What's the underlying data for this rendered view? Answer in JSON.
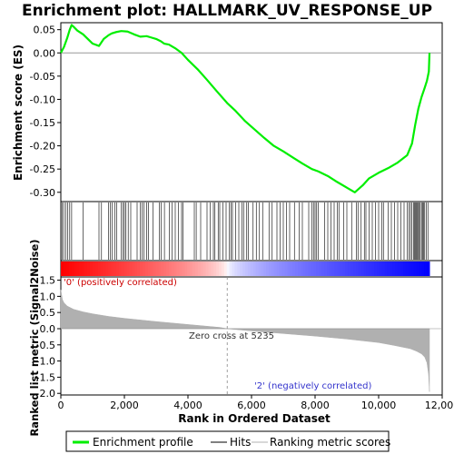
{
  "chart_data": {
    "type": "line",
    "title": "Enrichment plot: HALLMARK_UV_RESPONSE_UP",
    "x_label": "Rank in Ordered Dataset",
    "x_ticks": [
      "0",
      "2,000",
      "4,000",
      "6,000",
      "8,000",
      "10,000",
      "12,000"
    ],
    "x_tick_values": [
      0,
      2000,
      4000,
      6000,
      8000,
      10000,
      12000
    ],
    "xlim": [
      0,
      12000
    ],
    "n_genes": 11600,
    "panels": {
      "es": {
        "ylabel": "Enrichment score (ES)",
        "ylim": [
          -0.32,
          0.065
        ],
        "y_ticks": [
          "0.05",
          "0.00",
          "-0.05",
          "-0.10",
          "-0.15",
          "-0.20",
          "-0.25",
          "-0.30"
        ],
        "y_tick_values": [
          0.05,
          0.0,
          -0.05,
          -0.1,
          -0.15,
          -0.2,
          -0.25,
          -0.3
        ]
      },
      "metric": {
        "ylabel": "Ranked list metric (Signal2Noise)",
        "ylim": [
          -2.05,
          1.6
        ],
        "y_ticks": [
          "1.5",
          "1.0",
          "0.5",
          "0.0",
          "-0.5",
          "-1.0",
          "-1.5",
          "-2.0"
        ],
        "y_tick_values": [
          1.5,
          1.0,
          0.5,
          0.0,
          -0.5,
          -1.0,
          -1.5,
          -2.0
        ]
      }
    },
    "series": [
      {
        "name": "Enrichment profile",
        "color": "#00ee00",
        "x": [
          0,
          100,
          200,
          280,
          340,
          420,
          520,
          700,
          1000,
          1200,
          1350,
          1500,
          1600,
          1750,
          1900,
          2100,
          2300,
          2500,
          2700,
          2850,
          3000,
          3150,
          3250,
          3400,
          3600,
          3800,
          4000,
          4300,
          4600,
          4900,
          5235,
          5500,
          5800,
          6100,
          6400,
          6700,
          7000,
          7300,
          7600,
          7900,
          8100,
          8400,
          8700,
          9000,
          9250,
          9500,
          9700,
          10000,
          10300,
          10600,
          10900,
          11050,
          11150,
          11250,
          11350,
          11450,
          11520,
          11580,
          11600
        ],
        "y": [
          0.0,
          0.013,
          0.032,
          0.05,
          0.06,
          0.055,
          0.048,
          0.04,
          0.02,
          0.015,
          0.03,
          0.038,
          0.042,
          0.045,
          0.047,
          0.046,
          0.04,
          0.035,
          0.036,
          0.033,
          0.03,
          0.025,
          0.02,
          0.018,
          0.01,
          0.0,
          -0.015,
          -0.035,
          -0.058,
          -0.082,
          -0.108,
          -0.125,
          -0.147,
          -0.165,
          -0.183,
          -0.2,
          -0.212,
          -0.225,
          -0.238,
          -0.25,
          -0.255,
          -0.265,
          -0.278,
          -0.29,
          -0.3,
          -0.285,
          -0.27,
          -0.258,
          -0.248,
          -0.236,
          -0.22,
          -0.195,
          -0.155,
          -0.12,
          -0.095,
          -0.075,
          -0.06,
          -0.04,
          0.0
        ]
      }
    ],
    "hits_series_name": "Hits",
    "hit_ranks": [
      40,
      90,
      150,
      210,
      280,
      340,
      700,
      1200,
      1280,
      1500,
      1560,
      1620,
      1700,
      1760,
      1900,
      1960,
      2000,
      2050,
      2120,
      2200,
      2400,
      2500,
      2560,
      2620,
      2700,
      2760,
      2900,
      3100,
      3160,
      3260,
      3420,
      3500,
      3600,
      3700,
      3800,
      3850,
      4200,
      4260,
      4400,
      4600,
      4700,
      4800,
      4850,
      4950,
      5000,
      5100,
      5200,
      5300,
      5350,
      5400,
      5500,
      5600,
      5700,
      5750,
      5850,
      5900,
      6050,
      6150,
      6250,
      6350,
      6550,
      6650,
      6800,
      6900,
      7000,
      7100,
      7200,
      7350,
      7500,
      7600,
      7800,
      7900,
      7950,
      8000,
      8050,
      8100,
      8300,
      8400,
      8500,
      8600,
      8700,
      8750,
      8900,
      9000,
      9150,
      9300,
      9350,
      9450,
      9550,
      9600,
      9700,
      9800,
      9900,
      10000,
      10100,
      10150,
      10300,
      10400,
      10500,
      10600,
      10700,
      10800,
      10900,
      10950,
      11000,
      11050,
      11100,
      11130,
      11160,
      11190,
      11220,
      11250,
      11280,
      11310,
      11350,
      11380,
      11420,
      11450,
      11500,
      11550
    ],
    "metric_profile": {
      "name": "Ranking metric scores",
      "color": "#b0b0b0",
      "x": [
        0,
        50,
        100,
        200,
        400,
        700,
        1000,
        1500,
        2000,
        3000,
        4000,
        5000,
        5235,
        6000,
        7000,
        8000,
        9000,
        10000,
        10500,
        11000,
        11200,
        11350,
        11450,
        11520,
        11570,
        11600
      ],
      "y": [
        1.2,
        0.9,
        0.8,
        0.7,
        0.6,
        0.52,
        0.46,
        0.38,
        0.32,
        0.22,
        0.13,
        0.04,
        0.0,
        -0.07,
        -0.15,
        -0.23,
        -0.32,
        -0.43,
        -0.52,
        -0.62,
        -0.7,
        -0.78,
        -0.88,
        -1.05,
        -1.4,
        -1.95
      ]
    },
    "zero_cross": 5235,
    "annotations": {
      "positive": "'0' (positively correlated)",
      "negative": "'2' (negatively correlated)",
      "zero_cross": "Zero cross at 5235"
    },
    "legend_position": "bottom"
  },
  "legend": {
    "items": [
      {
        "label": "Enrichment profile",
        "color": "#00ee00"
      },
      {
        "label": "Hits",
        "color": "#000000"
      },
      {
        "label": "Ranking metric scores",
        "color": "#b0b0b0"
      }
    ]
  },
  "colors": {
    "positive": "#ff0000",
    "negative": "#0000ff",
    "neutral": "#ffffff",
    "grid_zero": "#999999"
  }
}
